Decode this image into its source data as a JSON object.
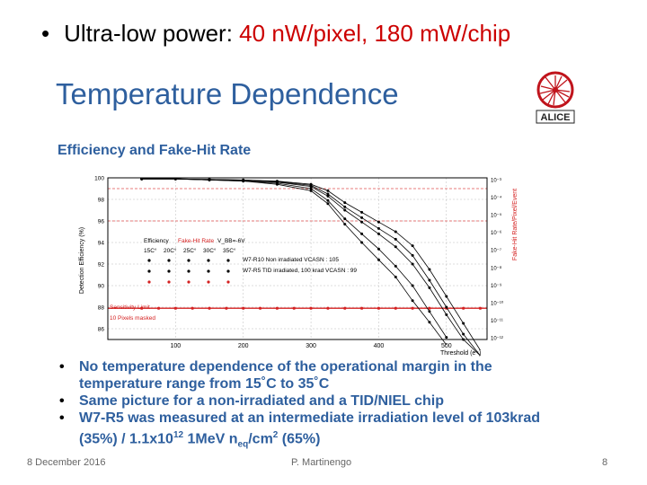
{
  "slide": {
    "top_bullet": {
      "prefix": "Ultra-low power: ",
      "highlight": "40 nW/pixel, 180 mW/chip"
    },
    "title": "Temperature Dependence",
    "subtitle": "Efficiency and Fake-Hit Rate",
    "logo_text": "ALICE",
    "bullets": [
      {
        "text": "No temperature dependence of the operational margin in the temperature range from 15˚C to 35˚C"
      },
      {
        "text": "Same picture for a non-irradiated and a TID/NIEL chip"
      },
      {
        "t1": "W7-R5 was measured at an intermediate irradiation level of 103krad (35%) / 1.1x10",
        "sup1": "12",
        "t2": " 1MeV n",
        "sub1": "eq",
        "t3": "/cm",
        "sup2": "2",
        "t4": " (65%)"
      }
    ],
    "footer": {
      "date": "8 December 2016",
      "author": "P. Martinengo",
      "page": "8"
    }
  },
  "chart_data": {
    "type": "line",
    "xlabel": "Threshold (e⁻)",
    "ylabel": "Detection Efficiency (%)",
    "y2label": "Fake-Hit Rate/Pixel/Event",
    "xlim": [
      0,
      560
    ],
    "ylim": [
      85,
      100
    ],
    "x_ticks": [
      100,
      200,
      300,
      400,
      500
    ],
    "y_ticks": [
      100,
      98,
      96,
      94,
      92,
      90,
      88,
      86
    ],
    "y2_ticks": [
      "10⁻³",
      "10⁻⁴",
      "10⁻⁵",
      "10⁻⁶",
      "10⁻⁷",
      "10⁻⁸",
      "10⁻⁹",
      "10⁻¹⁰",
      "10⁻¹¹",
      "10⁻¹²"
    ],
    "legend": {
      "header_efficiency": "Efficiency",
      "header_fakehit": "Fake-Hit Rate",
      "header_vbb": "V_BB=-6V",
      "temps": [
        "15C°",
        "20C°",
        "25C°",
        "30C°",
        "35C°"
      ],
      "row1": "W7-R10 Non irradiated VCASN : 105",
      "row2": "W7-R5 TID irradiated, 100 krad VCASN : 99"
    },
    "annotations": {
      "sensitivity": "Sensitivity Limit",
      "masked": "10 Pixels masked"
    },
    "reference_lines": {
      "efficiency_99": 99,
      "efficiency_96": 96,
      "fake_limit": 87.9
    },
    "colors": {
      "efficiency": "#000000",
      "fakehit": "#d42020",
      "grid": "#bbbbbb",
      "dashed": "#e05050"
    },
    "series": [
      {
        "x": [
          50,
          100,
          150,
          200,
          250,
          300,
          325,
          350,
          375,
          400,
          425,
          450,
          475,
          500,
          525,
          550
        ],
        "y": [
          99.9,
          99.9,
          99.85,
          99.8,
          99.7,
          99.4,
          98.8,
          97.7,
          96.8,
          95.9,
          95.0,
          93.7,
          91.5,
          89.0,
          86.5,
          84.0
        ]
      },
      {
        "x": [
          50,
          100,
          150,
          200,
          250,
          300,
          325,
          350,
          375,
          400,
          425,
          450,
          475,
          500,
          525,
          550
        ],
        "y": [
          99.9,
          99.9,
          99.85,
          99.8,
          99.65,
          99.3,
          98.5,
          97.3,
          96.3,
          95.3,
          94.3,
          92.8,
          90.5,
          88.0,
          85.5,
          83.0
        ]
      },
      {
        "x": [
          50,
          100,
          150,
          200,
          250,
          300,
          325,
          350,
          375,
          400,
          425,
          450,
          475,
          500,
          525,
          550
        ],
        "y": [
          99.9,
          99.9,
          99.8,
          99.75,
          99.6,
          99.2,
          98.3,
          97.0,
          95.9,
          94.8,
          93.6,
          92.0,
          89.8,
          87.3,
          85.0,
          82.5
        ]
      },
      {
        "x": [
          50,
          100,
          150,
          200,
          250,
          300,
          325,
          350,
          375,
          400,
          425,
          450,
          475,
          500
        ],
        "y": [
          99.9,
          99.9,
          99.8,
          99.7,
          99.5,
          99.0,
          97.9,
          96.2,
          94.8,
          93.4,
          91.8,
          90.0,
          87.6,
          85.2
        ]
      },
      {
        "x": [
          50,
          100,
          150,
          200,
          250,
          300,
          325,
          350,
          375,
          400,
          425,
          450,
          475,
          500
        ],
        "y": [
          99.9,
          99.9,
          99.8,
          99.7,
          99.4,
          98.8,
          97.6,
          95.7,
          94.0,
          92.4,
          90.8,
          88.6,
          86.6,
          84.5
        ]
      },
      {
        "x": [
          300,
          350,
          400
        ],
        "y": [
          87.9,
          87.9,
          87.9
        ],
        "kind": "fake"
      }
    ]
  }
}
